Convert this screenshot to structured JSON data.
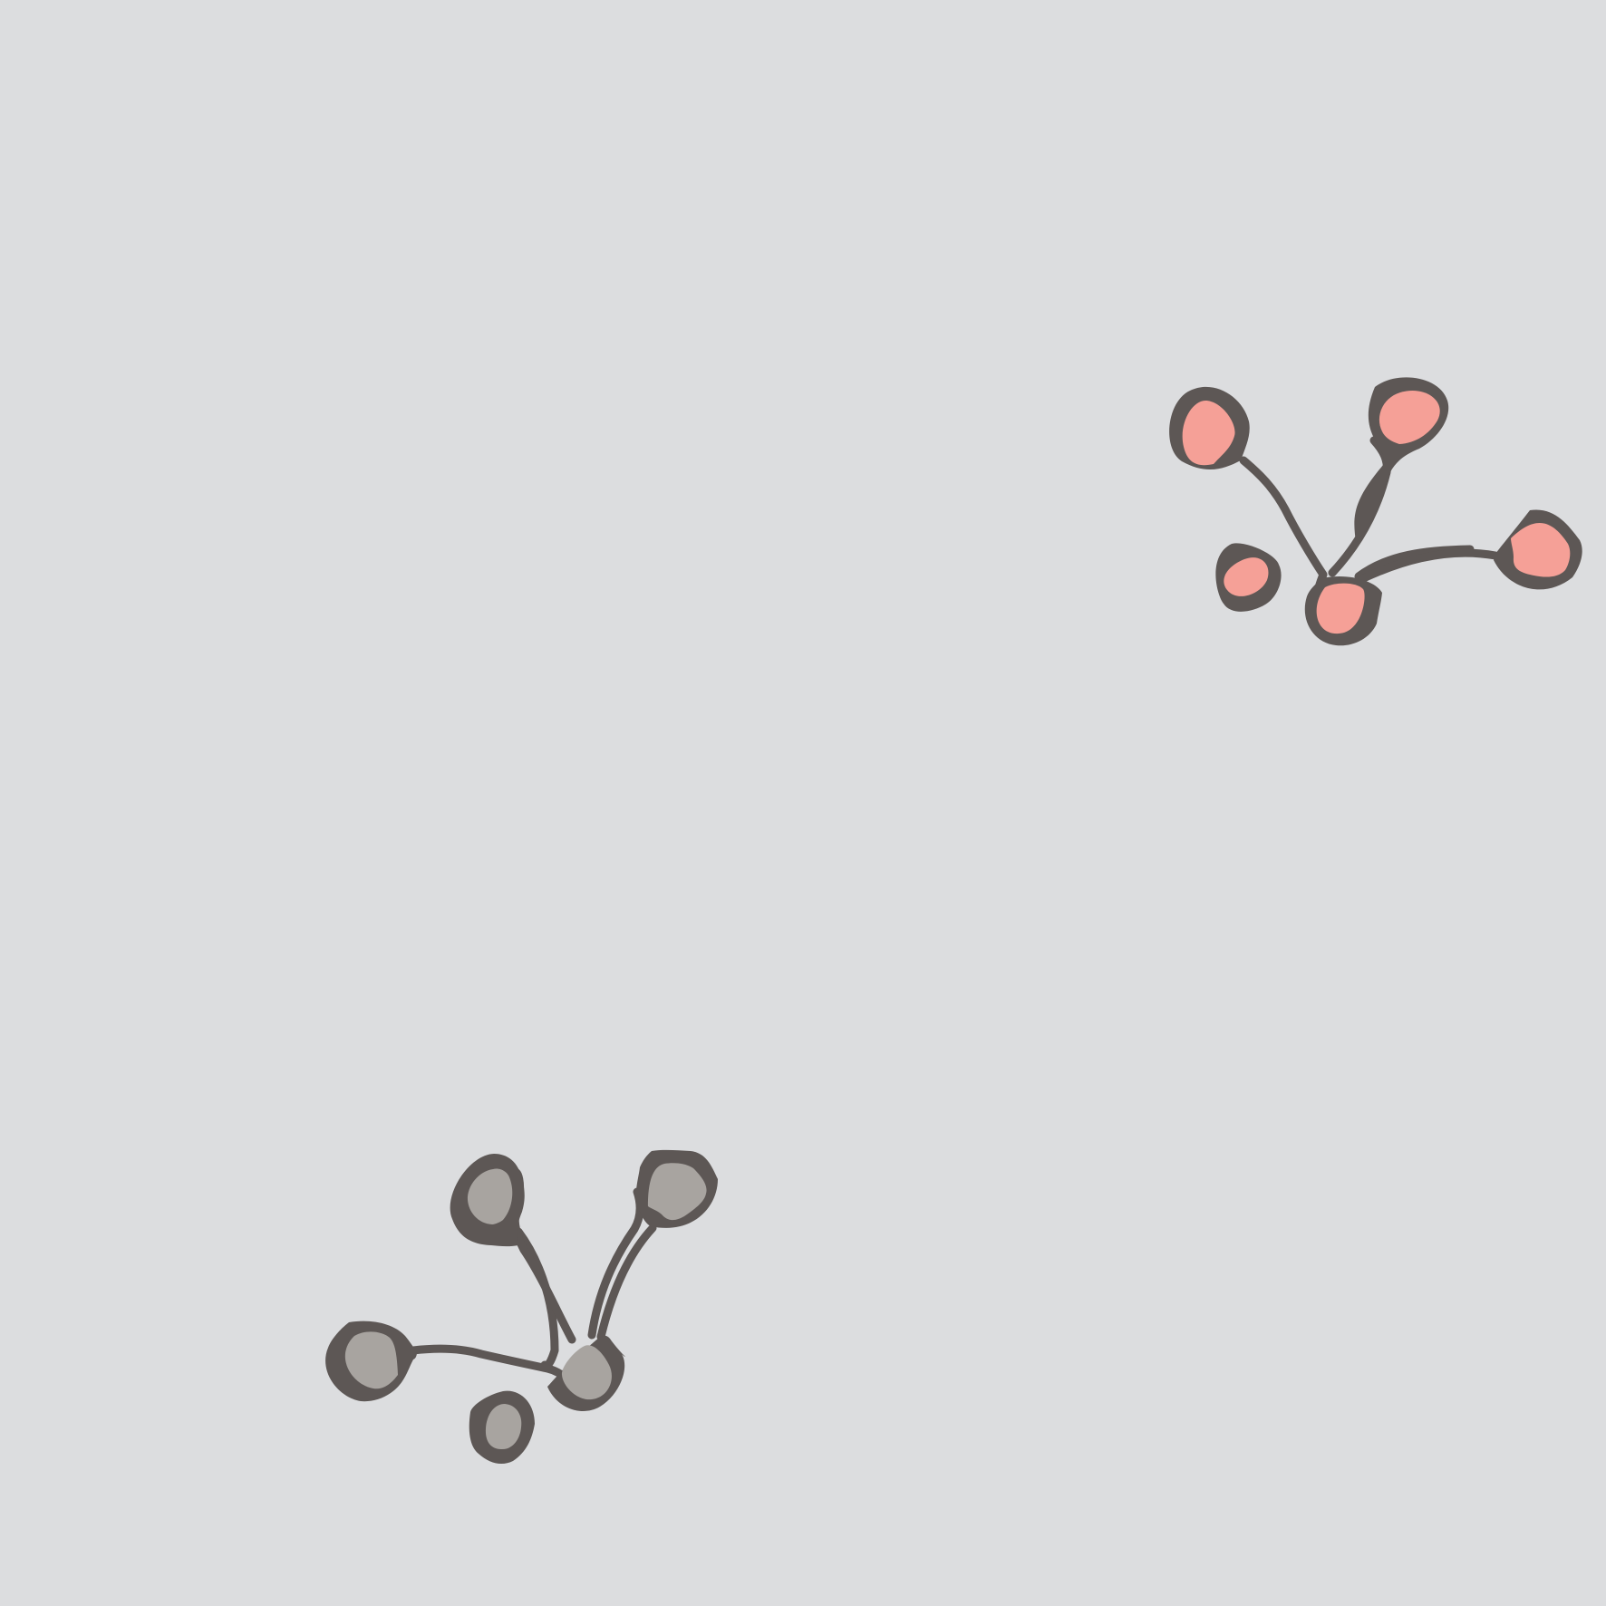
{
  "canvas": {
    "background": "#dcdddf"
  },
  "sprigs": [
    {
      "name": "pink-berry-sprig",
      "stem_color": "#5d5755",
      "berry_color": "#f5a097",
      "berry_count": 5
    },
    {
      "name": "grey-berry-sprig",
      "stem_color": "#5d5755",
      "berry_color": "#a8a4a0",
      "berry_count": 5
    }
  ]
}
